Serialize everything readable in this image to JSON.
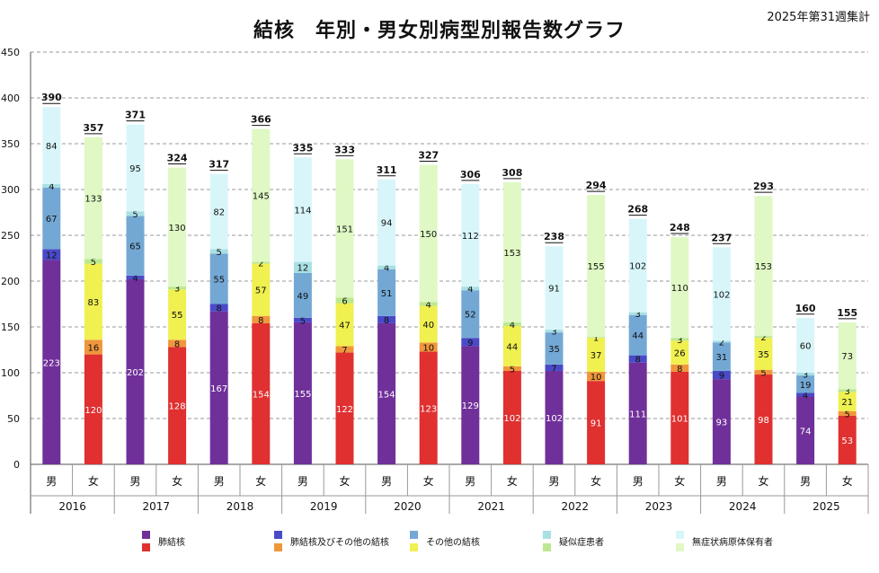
{
  "title": "結核　年別・男女別病型別報告数グラフ",
  "note": "2025年第31週集計",
  "chart_data": {
    "type": "bar",
    "stacked": true,
    "title": "結核　年別・男女別病型別報告数グラフ",
    "ylim": [
      0,
      450
    ],
    "yticks": [
      0,
      50,
      100,
      150,
      200,
      250,
      300,
      350,
      400,
      450
    ],
    "grid": true,
    "legend_position": "bottom",
    "years": [
      "2016",
      "2017",
      "2018",
      "2019",
      "2020",
      "2021",
      "2022",
      "2023",
      "2024",
      "2025"
    ],
    "sexes": [
      "男",
      "女"
    ],
    "categories_labels": [
      {
        "key": "haikekkaku",
        "label": "肺結核",
        "color_male": "#70309A",
        "color_female": "#E03030"
      },
      {
        "key": "haikekkaku_other",
        "label": "肺結核及びその他の結核",
        "color_male": "#4A4AC8",
        "color_female": "#F0963C"
      },
      {
        "key": "other",
        "label": "その他の結核",
        "color_male": "#74A8D4",
        "color_female": "#F0F050"
      },
      {
        "key": "suspected",
        "label": "疑似症患者",
        "color_male": "#A8E0E4",
        "color_female": "#BCE890"
      },
      {
        "key": "asymptomatic",
        "label": "無症状病原体保有者",
        "color_male": "#D8F6FA",
        "color_female": "#DFF8C4"
      }
    ],
    "bars": [
      {
        "year": "2016",
        "sex": "男",
        "total": 390,
        "values": [
          223,
          12,
          67,
          4,
          84
        ]
      },
      {
        "year": "2016",
        "sex": "女",
        "total": 357,
        "values": [
          120,
          16,
          83,
          5,
          133
        ]
      },
      {
        "year": "2017",
        "sex": "男",
        "total": 371,
        "values": [
          202,
          4,
          65,
          5,
          95
        ]
      },
      {
        "year": "2017",
        "sex": "女",
        "total": 324,
        "values": [
          128,
          8,
          55,
          3,
          130
        ]
      },
      {
        "year": "2018",
        "sex": "男",
        "total": 317,
        "values": [
          167,
          8,
          55,
          5,
          82
        ]
      },
      {
        "year": "2018",
        "sex": "女",
        "total": 366,
        "values": [
          154,
          8,
          57,
          2,
          145
        ]
      },
      {
        "year": "2019",
        "sex": "男",
        "total": 335,
        "values": [
          155,
          5,
          49,
          12,
          114
        ]
      },
      {
        "year": "2019",
        "sex": "女",
        "total": 333,
        "values": [
          122,
          7,
          47,
          6,
          151
        ]
      },
      {
        "year": "2020",
        "sex": "男",
        "total": 311,
        "values": [
          154,
          8,
          51,
          4,
          94
        ]
      },
      {
        "year": "2020",
        "sex": "女",
        "total": 327,
        "values": [
          123,
          10,
          40,
          4,
          150
        ]
      },
      {
        "year": "2021",
        "sex": "男",
        "total": 306,
        "values": [
          129,
          9,
          52,
          4,
          112
        ]
      },
      {
        "year": "2021",
        "sex": "女",
        "total": 308,
        "values": [
          102,
          5,
          44,
          4,
          153
        ]
      },
      {
        "year": "2022",
        "sex": "男",
        "total": 238,
        "values": [
          102,
          7,
          35,
          3,
          91
        ]
      },
      {
        "year": "2022",
        "sex": "女",
        "total": 294,
        "values": [
          91,
          10,
          37,
          1,
          155
        ]
      },
      {
        "year": "2023",
        "sex": "男",
        "total": 268,
        "values": [
          111,
          8,
          44,
          3,
          102
        ]
      },
      {
        "year": "2023",
        "sex": "女",
        "total": 248,
        "values": [
          101,
          8,
          26,
          3,
          110
        ]
      },
      {
        "year": "2024",
        "sex": "男",
        "total": 237,
        "values": [
          93,
          9,
          31,
          2,
          102
        ]
      },
      {
        "year": "2024",
        "sex": "女",
        "total": 293,
        "values": [
          98,
          5,
          35,
          2,
          153
        ]
      },
      {
        "year": "2025",
        "sex": "男",
        "total": 160,
        "values": [
          74,
          4,
          19,
          3,
          60
        ]
      },
      {
        "year": "2025",
        "sex": "女",
        "total": 155,
        "values": [
          53,
          5,
          21,
          3,
          73
        ]
      }
    ]
  }
}
